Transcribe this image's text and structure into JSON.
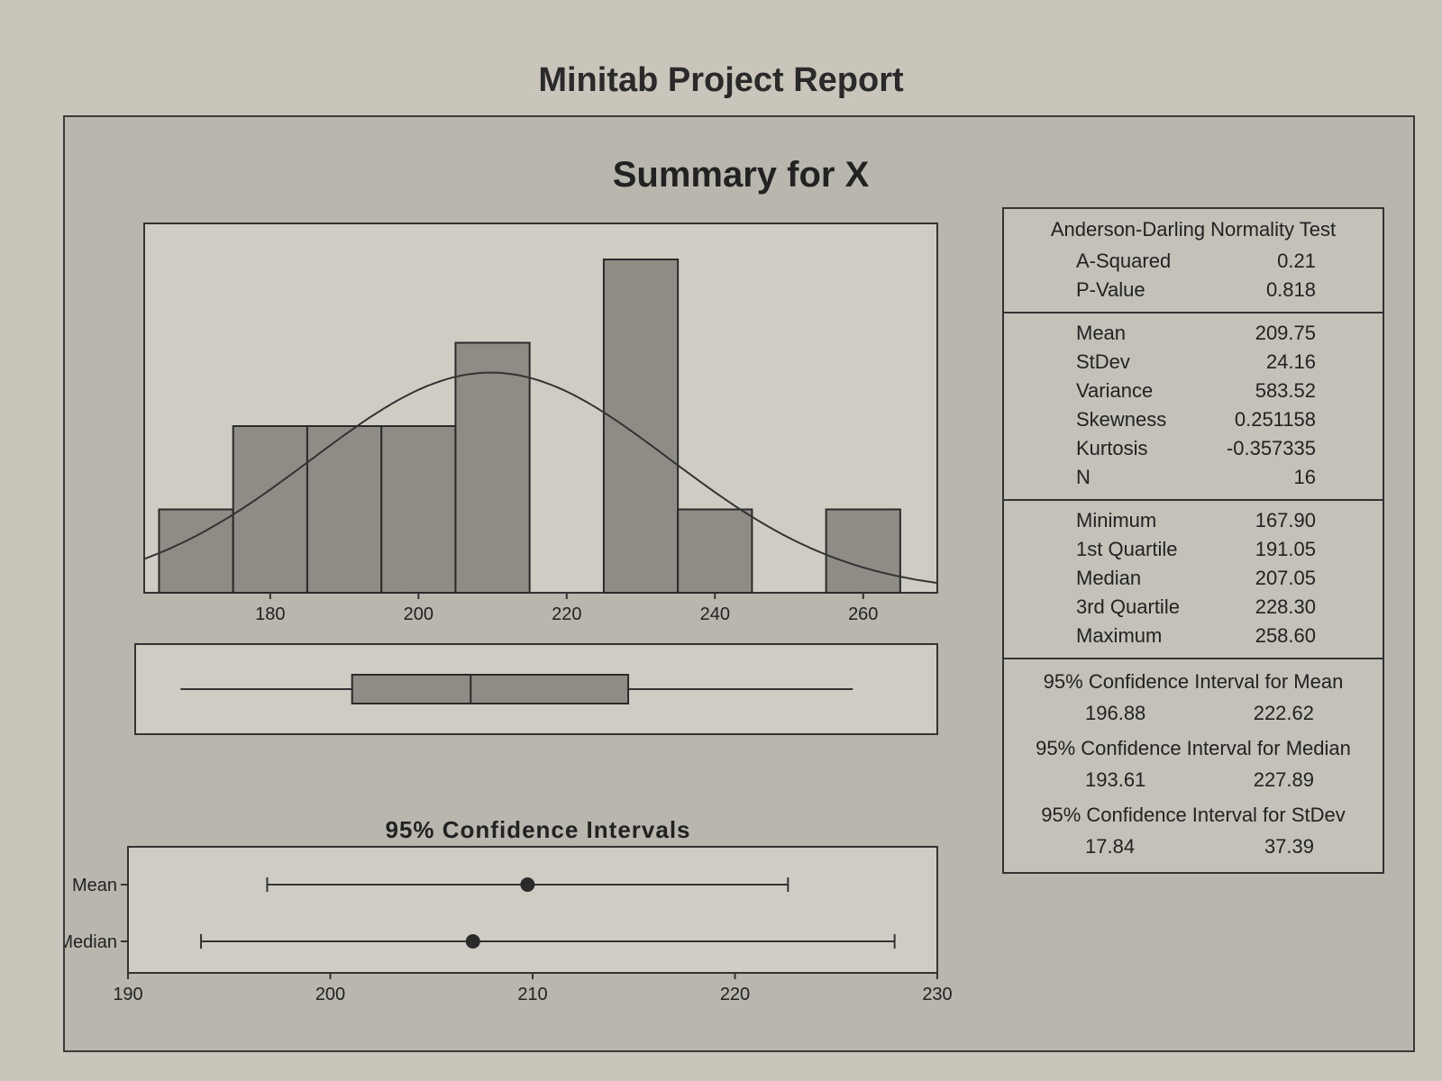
{
  "report_title": "Minitab Project Report",
  "summary_title": "Summary for X",
  "ci_heading": "95% Confidence Intervals",
  "stats": {
    "normality": {
      "title": "Anderson-Darling Normality Test",
      "rows": [
        {
          "label": "A-Squared",
          "value": "0.21"
        },
        {
          "label": "P-Value",
          "value": "0.818"
        }
      ]
    },
    "moments": {
      "rows": [
        {
          "label": "Mean",
          "value": "209.75"
        },
        {
          "label": "StDev",
          "value": "24.16"
        },
        {
          "label": "Variance",
          "value": "583.52"
        },
        {
          "label": "Skewness",
          "value": "0.251158"
        },
        {
          "label": "Kurtosis",
          "value": "-0.357335"
        },
        {
          "label": "N",
          "value": "16"
        }
      ]
    },
    "quartiles": {
      "rows": [
        {
          "label": "Minimum",
          "value": "167.90"
        },
        {
          "label": "1st Quartile",
          "value": "191.05"
        },
        {
          "label": "Median",
          "value": "207.05"
        },
        {
          "label": "3rd Quartile",
          "value": "228.30"
        },
        {
          "label": "Maximum",
          "value": "258.60"
        }
      ]
    },
    "intervals": [
      {
        "title": "95% Confidence Interval for Mean",
        "low": "196.88",
        "high": "222.62"
      },
      {
        "title": "95% Confidence Interval for Median",
        "low": "193.61",
        "high": "227.89"
      },
      {
        "title": "95% Confidence Interval for StDev",
        "low": "17.84",
        "high": "37.39"
      }
    ]
  },
  "chart_data": [
    {
      "type": "bar",
      "title": "",
      "x_range": [
        163,
        270
      ],
      "x_ticks": [
        "180",
        "200",
        "220",
        "240",
        "260"
      ],
      "bin_width": 10,
      "bins": [
        {
          "center": 170,
          "count": 1
        },
        {
          "center": 180,
          "count": 2
        },
        {
          "center": 190,
          "count": 2
        },
        {
          "center": 200,
          "count": 2
        },
        {
          "center": 210,
          "count": 3
        },
        {
          "center": 220,
          "count": 0
        },
        {
          "center": 230,
          "count": 4
        },
        {
          "center": 240,
          "count": 1
        },
        {
          "center": 250,
          "count": 0
        },
        {
          "center": 260,
          "count": 1
        }
      ],
      "normal_curve": {
        "mean": 209.75,
        "stdev": 24.16
      },
      "boxplot": {
        "whisker_low": 167.9,
        "q1": 191.05,
        "median": 207.05,
        "q3": 228.3,
        "whisker_high": 258.6
      }
    },
    {
      "type": "scatter",
      "title": "95% Confidence Intervals",
      "x_range": [
        190,
        230
      ],
      "x_ticks": [
        "190",
        "200",
        "210",
        "220",
        "230"
      ],
      "rows": [
        {
          "label": "Mean",
          "estimate": 209.75,
          "low": 196.88,
          "high": 222.62
        },
        {
          "label": "Median",
          "estimate": 207.05,
          "low": 193.61,
          "high": 227.89
        }
      ]
    }
  ]
}
